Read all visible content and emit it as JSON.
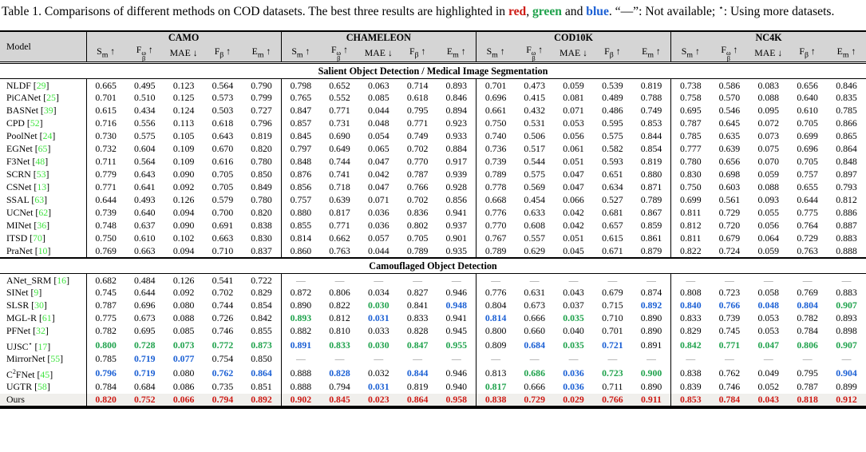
{
  "colors": {
    "highlight_red": "#cd1a14",
    "highlight_green": "#1fa24c",
    "highlight_blue": "#1a5fd4",
    "citation_green": "#3fe43f",
    "dash_gray": "#8a8a8a",
    "header_bg": "#d5d5d5",
    "ours_row_bg": "#f0efec"
  },
  "caption": {
    "lead": "Table 1.",
    "text1": "  Comparisons of different methods on COD datasets. The best three results are highlighted in ",
    "red": "red",
    "c1": ", ",
    "green": "green",
    "c2": " and ",
    "blue": "blue",
    "text2": ". “—”: Not available; ",
    "star": "⋆",
    "text3": ": Using more datasets."
  },
  "table": {
    "header": {
      "model_label": "Model",
      "groups": [
        "CAMO",
        "CHAMELEON",
        "COD10K",
        "NC4K"
      ],
      "metrics": [
        {
          "base": "S",
          "sub": "m",
          "arrow": "↑"
        },
        {
          "base": "F",
          "sub": "β",
          "sup": "ω",
          "arrow": "↑"
        },
        {
          "base": "MAE",
          "arrow": "↓"
        },
        {
          "base": "F",
          "sub": "β",
          "arrow": "↑"
        },
        {
          "base": "E",
          "sub": "m",
          "arrow": "↑"
        }
      ]
    },
    "sections": [
      {
        "title": "Salient Object Detection / Medical Image Segmentation",
        "rows": [
          {
            "model": "NLDF",
            "cite": "29",
            "values": [
              "0.665",
              "0.495",
              "0.123",
              "0.564",
              "0.790",
              "0.798",
              "0.652",
              "0.063",
              "0.714",
              "0.893",
              "0.701",
              "0.473",
              "0.059",
              "0.539",
              "0.819",
              "0.738",
              "0.586",
              "0.083",
              "0.656",
              "0.846"
            ]
          },
          {
            "model": "PiCANet",
            "cite": "25",
            "values": [
              "0.701",
              "0.510",
              "0.125",
              "0.573",
              "0.799",
              "0.765",
              "0.552",
              "0.085",
              "0.618",
              "0.846",
              "0.696",
              "0.415",
              "0.081",
              "0.489",
              "0.788",
              "0.758",
              "0.570",
              "0.088",
              "0.640",
              "0.835"
            ]
          },
          {
            "model": "BASNet",
            "cite": "39",
            "values": [
              "0.615",
              "0.434",
              "0.124",
              "0.503",
              "0.727",
              "0.847",
              "0.771",
              "0.044",
              "0.795",
              "0.894",
              "0.661",
              "0.432",
              "0.071",
              "0.486",
              "0.749",
              "0.695",
              "0.546",
              "0.095",
              "0.610",
              "0.785"
            ]
          },
          {
            "model": "CPD",
            "cite": "52",
            "values": [
              "0.716",
              "0.556",
              "0.113",
              "0.618",
              "0.796",
              "0.857",
              "0.731",
              "0.048",
              "0.771",
              "0.923",
              "0.750",
              "0.531",
              "0.053",
              "0.595",
              "0.853",
              "0.787",
              "0.645",
              "0.072",
              "0.705",
              "0.866"
            ]
          },
          {
            "model": "PoolNet",
            "cite": "24",
            "values": [
              "0.730",
              "0.575",
              "0.105",
              "0.643",
              "0.819",
              "0.845",
              "0.690",
              "0.054",
              "0.749",
              "0.933",
              "0.740",
              "0.506",
              "0.056",
              "0.575",
              "0.844",
              "0.785",
              "0.635",
              "0.073",
              "0.699",
              "0.865"
            ]
          },
          {
            "model": "EGNet",
            "cite": "65",
            "values": [
              "0.732",
              "0.604",
              "0.109",
              "0.670",
              "0.820",
              "0.797",
              "0.649",
              "0.065",
              "0.702",
              "0.884",
              "0.736",
              "0.517",
              "0.061",
              "0.582",
              "0.854",
              "0.777",
              "0.639",
              "0.075",
              "0.696",
              "0.864"
            ]
          },
          {
            "model": "F3Net",
            "cite": "48",
            "values": [
              "0.711",
              "0.564",
              "0.109",
              "0.616",
              "0.780",
              "0.848",
              "0.744",
              "0.047",
              "0.770",
              "0.917",
              "0.739",
              "0.544",
              "0.051",
              "0.593",
              "0.819",
              "0.780",
              "0.656",
              "0.070",
              "0.705",
              "0.848"
            ]
          },
          {
            "model": "SCRN",
            "cite": "53",
            "values": [
              "0.779",
              "0.643",
              "0.090",
              "0.705",
              "0.850",
              "0.876",
              "0.741",
              "0.042",
              "0.787",
              "0.939",
              "0.789",
              "0.575",
              "0.047",
              "0.651",
              "0.880",
              "0.830",
              "0.698",
              "0.059",
              "0.757",
              "0.897"
            ]
          },
          {
            "model": "CSNet",
            "cite": "13",
            "values": [
              "0.771",
              "0.641",
              "0.092",
              "0.705",
              "0.849",
              "0.856",
              "0.718",
              "0.047",
              "0.766",
              "0.928",
              "0.778",
              "0.569",
              "0.047",
              "0.634",
              "0.871",
              "0.750",
              "0.603",
              "0.088",
              "0.655",
              "0.793"
            ]
          },
          {
            "model": "SSAL",
            "cite": "63",
            "values": [
              "0.644",
              "0.493",
              "0.126",
              "0.579",
              "0.780",
              "0.757",
              "0.639",
              "0.071",
              "0.702",
              "0.856",
              "0.668",
              "0.454",
              "0.066",
              "0.527",
              "0.789",
              "0.699",
              "0.561",
              "0.093",
              "0.644",
              "0.812"
            ]
          },
          {
            "model": "UCNet",
            "cite": "62",
            "values": [
              "0.739",
              "0.640",
              "0.094",
              "0.700",
              "0.820",
              "0.880",
              "0.817",
              "0.036",
              "0.836",
              "0.941",
              "0.776",
              "0.633",
              "0.042",
              "0.681",
              "0.867",
              "0.811",
              "0.729",
              "0.055",
              "0.775",
              "0.886"
            ]
          },
          {
            "model": "MINet",
            "cite": "36",
            "values": [
              "0.748",
              "0.637",
              "0.090",
              "0.691",
              "0.838",
              "0.855",
              "0.771",
              "0.036",
              "0.802",
              "0.937",
              "0.770",
              "0.608",
              "0.042",
              "0.657",
              "0.859",
              "0.812",
              "0.720",
              "0.056",
              "0.764",
              "0.887"
            ]
          },
          {
            "model": "ITSD",
            "cite": "70",
            "values": [
              "0.750",
              "0.610",
              "0.102",
              "0.663",
              "0.830",
              "0.814",
              "0.662",
              "0.057",
              "0.705",
              "0.901",
              "0.767",
              "0.557",
              "0.051",
              "0.615",
              "0.861",
              "0.811",
              "0.679",
              "0.064",
              "0.729",
              "0.883"
            ]
          },
          {
            "model": "PraNet",
            "cite": "10",
            "values": [
              "0.769",
              "0.663",
              "0.094",
              "0.710",
              "0.837",
              "0.860",
              "0.763",
              "0.044",
              "0.789",
              "0.935",
              "0.789",
              "0.629",
              "0.045",
              "0.671",
              "0.879",
              "0.822",
              "0.724",
              "0.059",
              "0.763",
              "0.888"
            ]
          }
        ]
      },
      {
        "title": "Camouflaged Object Detection",
        "rows": [
          {
            "model": "ANet_SRM",
            "cite": "16",
            "values": [
              "0.682",
              "0.484",
              "0.126",
              "0.541",
              "0.722",
              "—",
              "—",
              "—",
              "—",
              "—",
              "—",
              "—",
              "—",
              "—",
              "—",
              "—",
              "—",
              "—",
              "—",
              "—"
            ],
            "hl": "kkkkk ddddd ddddd ddddd"
          },
          {
            "model": "SINet",
            "cite": "9",
            "values": [
              "0.745",
              "0.644",
              "0.092",
              "0.702",
              "0.829",
              "0.872",
              "0.806",
              "0.034",
              "0.827",
              "0.946",
              "0.776",
              "0.631",
              "0.043",
              "0.679",
              "0.874",
              "0.808",
              "0.723",
              "0.058",
              "0.769",
              "0.883"
            ]
          },
          {
            "model": "SLSR",
            "cite": "30",
            "values": [
              "0.787",
              "0.696",
              "0.080",
              "0.744",
              "0.854",
              "0.890",
              "0.822",
              "0.030",
              "0.841",
              "0.948",
              "0.804",
              "0.673",
              "0.037",
              "0.715",
              "0.892",
              "0.840",
              "0.766",
              "0.048",
              "0.804",
              "0.907"
            ],
            "hl": "kkkkk kkgkb kkkkb bbbbg"
          },
          {
            "model": "MGL-R",
            "cite": "61",
            "values": [
              "0.775",
              "0.673",
              "0.088",
              "0.726",
              "0.842",
              "0.893",
              "0.812",
              "0.031",
              "0.833",
              "0.941",
              "0.814",
              "0.666",
              "0.035",
              "0.710",
              "0.890",
              "0.833",
              "0.739",
              "0.053",
              "0.782",
              "0.893"
            ],
            "hl": "kkkkk gkbkk bkgkk kkkkk"
          },
          {
            "model": "PFNet",
            "cite": "32",
            "values": [
              "0.782",
              "0.695",
              "0.085",
              "0.746",
              "0.855",
              "0.882",
              "0.810",
              "0.033",
              "0.828",
              "0.945",
              "0.800",
              "0.660",
              "0.040",
              "0.701",
              "0.890",
              "0.829",
              "0.745",
              "0.053",
              "0.784",
              "0.898"
            ]
          },
          {
            "model": "UJSC^{⋆}",
            "cite": "17",
            "values": [
              "0.800",
              "0.728",
              "0.073",
              "0.772",
              "0.873",
              "0.891",
              "0.833",
              "0.030",
              "0.847",
              "0.955",
              "0.809",
              "0.684",
              "0.035",
              "0.721",
              "0.891",
              "0.842",
              "0.771",
              "0.047",
              "0.806",
              "0.907"
            ],
            "hl": "ggggg bgggg kbgbk ggggg"
          },
          {
            "model": "MirrorNet",
            "cite": "55",
            "values": [
              "0.785",
              "0.719",
              "0.077",
              "0.754",
              "0.850",
              "—",
              "—",
              "—",
              "—",
              "—",
              "—",
              "—",
              "—",
              "—",
              "—",
              "—",
              "—",
              "—",
              "—",
              "—"
            ],
            "hl": "kbbkk ddddd ddddd ddddd"
          },
          {
            "model": "C^{2}FNet",
            "cite": "45",
            "values": [
              "0.796",
              "0.719",
              "0.080",
              "0.762",
              "0.864",
              "0.888",
              "0.828",
              "0.032",
              "0.844",
              "0.946",
              "0.813",
              "0.686",
              "0.036",
              "0.723",
              "0.900",
              "0.838",
              "0.762",
              "0.049",
              "0.795",
              "0.904"
            ],
            "hl": "bbkbb kbkbk kgbgg kkkkb"
          },
          {
            "model": "UGTR",
            "cite": "58",
            "values": [
              "0.784",
              "0.684",
              "0.086",
              "0.735",
              "0.851",
              "0.888",
              "0.794",
              "0.031",
              "0.819",
              "0.940",
              "0.817",
              "0.666",
              "0.036",
              "0.711",
              "0.890",
              "0.839",
              "0.746",
              "0.052",
              "0.787",
              "0.899"
            ],
            "hl": "kkkkk kkbkk gkbkk kkkkk"
          },
          {
            "model": "Ours",
            "ours": true,
            "values": [
              "0.820",
              "0.752",
              "0.066",
              "0.794",
              "0.892",
              "0.902",
              "0.845",
              "0.023",
              "0.864",
              "0.958",
              "0.838",
              "0.729",
              "0.029",
              "0.766",
              "0.911",
              "0.853",
              "0.784",
              "0.043",
              "0.818",
              "0.912"
            ],
            "hl": "rrrrr rrrrr rrrrr rrrrr"
          }
        ]
      }
    ]
  }
}
